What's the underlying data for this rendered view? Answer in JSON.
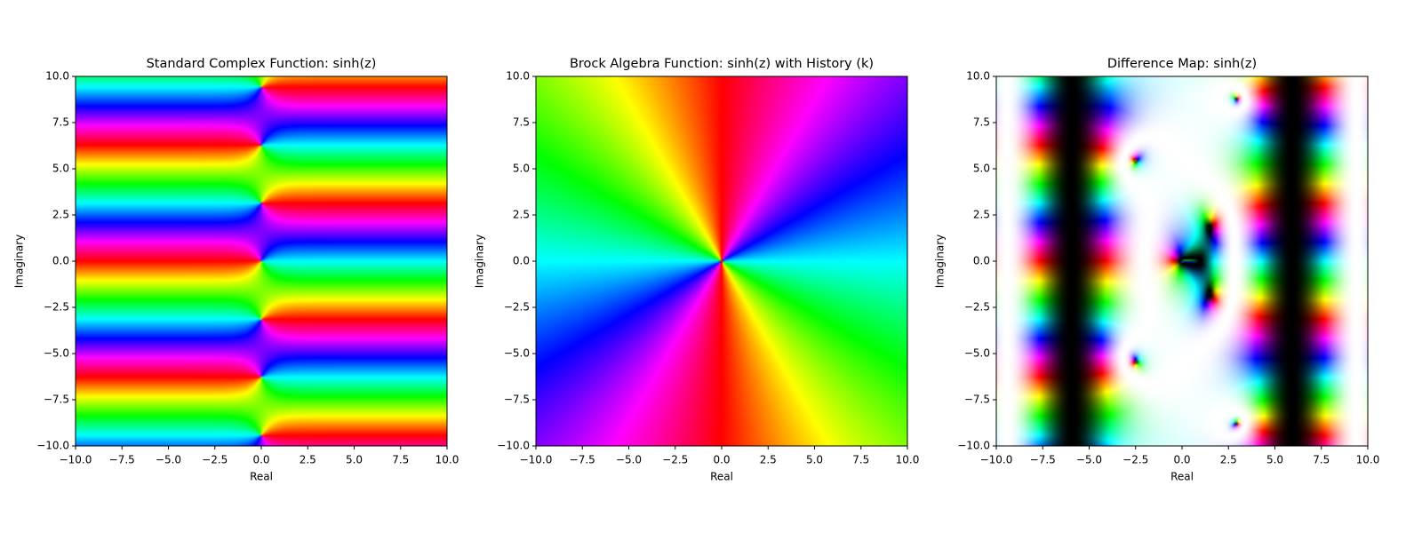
{
  "chart_data": [
    {
      "type": "image",
      "title": "Standard Complex Function: sinh(z)",
      "xlabel": "Real",
      "ylabel": "Imaginary",
      "xlim": [
        -10,
        10
      ],
      "ylim": [
        -10,
        10
      ],
      "xticks": [
        {
          "value": -10,
          "label": "−10.0"
        },
        {
          "value": -7.5,
          "label": "−7.5"
        },
        {
          "value": -5,
          "label": "−5.0"
        },
        {
          "value": -2.5,
          "label": "−2.5"
        },
        {
          "value": 0,
          "label": "0.0"
        },
        2.5,
        {
          "value": 5,
          "label": "5.0"
        },
        7.5,
        {
          "value": 10,
          "label": "10.0"
        }
      ],
      "yticks": [
        {
          "value": -10,
          "label": "−10.0"
        },
        {
          "value": -7.5,
          "label": "−7.5"
        },
        {
          "value": -5,
          "label": "−5.0"
        },
        {
          "value": -2.5,
          "label": "−2.5"
        },
        {
          "value": 0,
          "label": "0.0"
        },
        2.5,
        {
          "value": 5,
          "label": "5.0"
        },
        7.5,
        {
          "value": 10,
          "label": "10.0"
        }
      ]
    },
    {
      "type": "image",
      "title": "Brock Algebra Function: sinh(z) with History (k)",
      "xlabel": "Real",
      "ylabel": "Imaginary",
      "xlim": [
        -10,
        10
      ],
      "ylim": [
        -10,
        10
      ],
      "xticks": [
        {
          "value": -10,
          "label": "−10.0"
        },
        {
          "value": -7.5,
          "label": "−7.5"
        },
        {
          "value": -5,
          "label": "−5.0"
        },
        {
          "value": -2.5,
          "label": "−2.5"
        },
        {
          "value": 0,
          "label": "0.0"
        },
        2.5,
        {
          "value": 5,
          "label": "5.0"
        },
        7.5,
        {
          "value": 10,
          "label": "10.0"
        }
      ],
      "yticks": [
        {
          "value": -10,
          "label": "−10.0"
        },
        {
          "value": -7.5,
          "label": "−7.5"
        },
        {
          "value": -5,
          "label": "−5.0"
        },
        {
          "value": -2.5,
          "label": "−2.5"
        },
        {
          "value": 0,
          "label": "0.0"
        },
        2.5,
        {
          "value": 5,
          "label": "5.0"
        },
        7.5,
        {
          "value": 10,
          "label": "10.0"
        }
      ]
    },
    {
      "type": "image",
      "title": "Difference Map: sinh(z)",
      "xlabel": "Real",
      "ylabel": "Imaginary",
      "xlim": [
        -10,
        10
      ],
      "ylim": [
        -10,
        10
      ],
      "xticks": [
        {
          "value": -10,
          "label": "−10.0"
        },
        {
          "value": -7.5,
          "label": "−7.5"
        },
        {
          "value": -5,
          "label": "−5.0"
        },
        {
          "value": -2.5,
          "label": "−2.5"
        },
        {
          "value": 0,
          "label": "0.0"
        },
        2.5,
        {
          "value": 5,
          "label": "5.0"
        },
        7.5,
        {
          "value": 10,
          "label": "10.0"
        }
      ],
      "yticks": [
        {
          "value": -10,
          "label": "−10.0"
        },
        {
          "value": -7.5,
          "label": "−7.5"
        },
        {
          "value": -5,
          "label": "−5.0"
        },
        {
          "value": -2.5,
          "label": "−2.5"
        },
        {
          "value": 0,
          "label": "0.0"
        },
        2.5,
        {
          "value": 5,
          "label": "5.0"
        },
        7.5,
        {
          "value": 10,
          "label": "10.0"
        }
      ]
    }
  ]
}
